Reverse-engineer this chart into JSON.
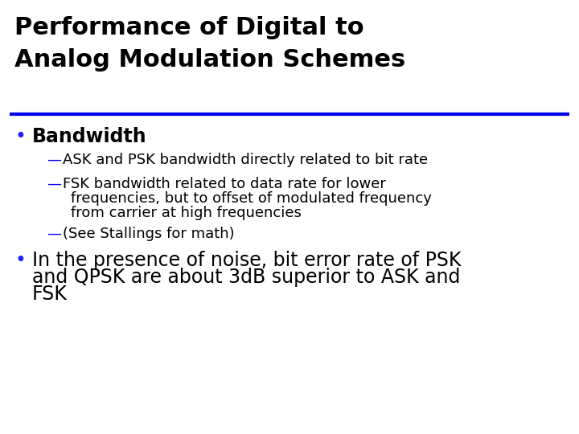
{
  "title_line1": "Performance of Digital to",
  "title_line2": "Analog Modulation Schemes",
  "title_color": "#000000",
  "title_fontsize": 22,
  "divider_color": "#0000EE",
  "background_color": "#ffffff",
  "bullet_color": "#000000",
  "sub_dash_color": "#0000EE",
  "bullet1_text": "Bandwidth",
  "bullet1_fontsize": 17,
  "sub_fontsize": 13,
  "sub1": "ASK and PSK bandwidth directly related to bit rate",
  "sub2_line1": "FSK bandwidth related to data rate for lower",
  "sub2_line2": "frequencies, but to offset of modulated frequency",
  "sub2_line3": "from carrier at high frequencies",
  "sub3": "(See Stallings for math)",
  "bullet2_line1": "In the presence of noise, bit error rate of PSK",
  "bullet2_line2": "and QPSK are about 3dB superior to ASK and",
  "bullet2_line3": "FSK",
  "bullet2_fontsize": 17
}
